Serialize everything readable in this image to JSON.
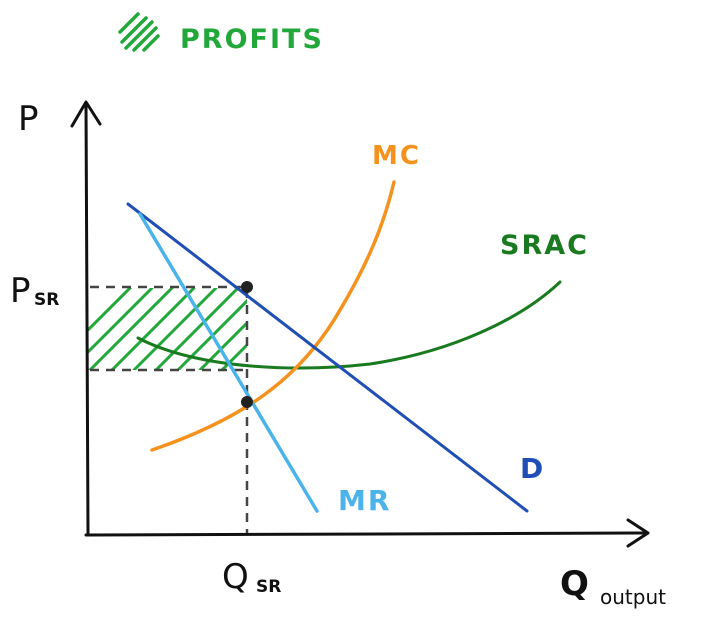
{
  "legend": {
    "label": "PROFITS"
  },
  "axes": {
    "y_label": "P",
    "x_label": "Q",
    "x_label_sub": "output"
  },
  "price_label": {
    "main": "P",
    "sub": "SR"
  },
  "quantity_label": {
    "main": "Q",
    "sub": "SR"
  },
  "curves": {
    "mc": {
      "label": "MC"
    },
    "srac": {
      "label": "SRAC"
    },
    "demand": {
      "label": "D"
    },
    "mr": {
      "label": "MR"
    }
  },
  "colors": {
    "axis": "#111111",
    "demand": "#1f4fb4",
    "mr": "#4ab3ea",
    "mc": "#f5921e",
    "srac": "#1a7a1f",
    "profit": "#22a83a",
    "guide": "#444444"
  }
}
